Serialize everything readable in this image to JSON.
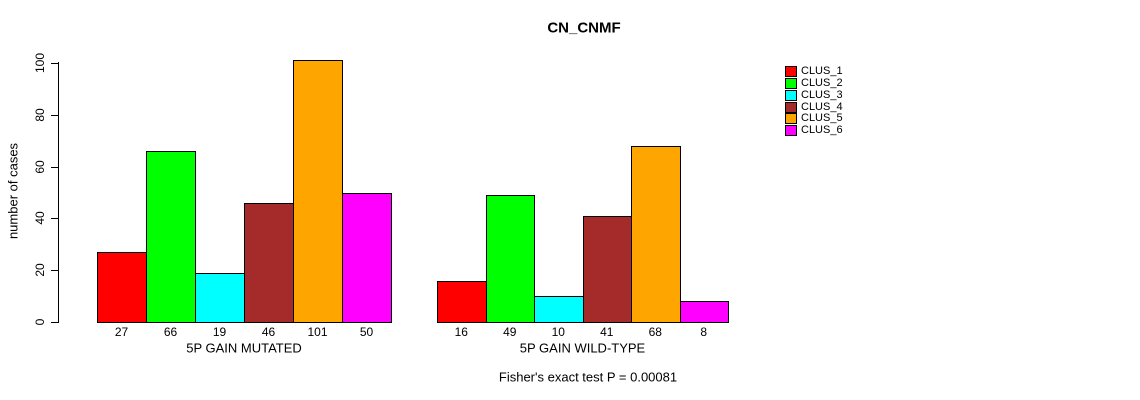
{
  "chart_data": {
    "type": "bar",
    "title": "CN_CNMF",
    "ylabel": "number of cases",
    "xlabel": "",
    "yticks": [
      0,
      20,
      40,
      60,
      80,
      100
    ],
    "ylim": [
      0,
      101
    ],
    "grid": false,
    "legend_position": "right-outside-top",
    "legend_entries": [
      "CLUS_1",
      "CLUS_2",
      "CLUS_3",
      "CLUS_4",
      "CLUS_5",
      "CLUS_6"
    ],
    "colors": [
      "#FF0000",
      "#00FF00",
      "#00FFFF",
      "#A52A2A",
      "#FFA500",
      "#FF00FF"
    ],
    "categories": [
      "CLUS_1",
      "CLUS_2",
      "CLUS_3",
      "CLUS_4",
      "CLUS_5",
      "CLUS_6"
    ],
    "groups": [
      {
        "label": "5P GAIN MUTATED",
        "values": [
          27,
          66,
          19,
          46,
          101,
          50
        ]
      },
      {
        "label": "5P GAIN WILD-TYPE",
        "values": [
          16,
          49,
          10,
          41,
          68,
          8
        ]
      }
    ],
    "footnote": "Fisher's exact test P = 0.00081"
  }
}
